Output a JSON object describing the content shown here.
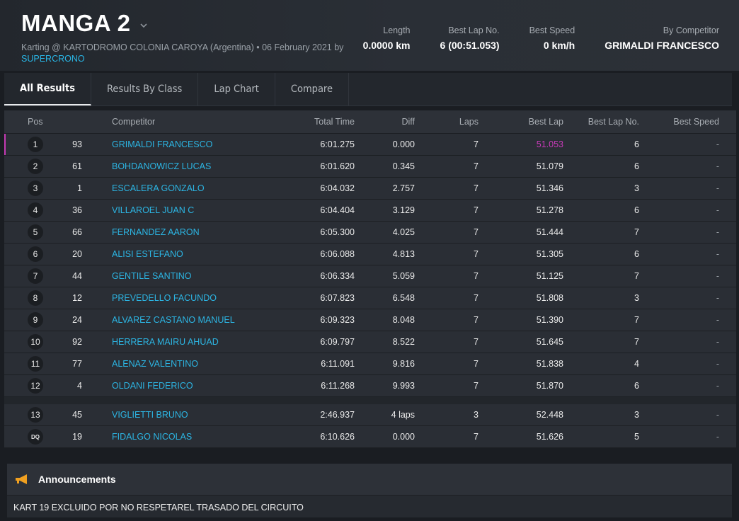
{
  "header": {
    "title": "MANGA 2",
    "subtitle_main": "Karting @ KARTODROMO COLONIA CAROYA (Argentina) • 06 February 2021 by",
    "subtitle_link": "SUPERCRONO",
    "stats": [
      {
        "label": "Length",
        "value": "0.0000 km"
      },
      {
        "label": "Best Lap No.",
        "value": "6 (00:51.053)"
      },
      {
        "label": "Best Speed",
        "value": "0 km/h"
      },
      {
        "label": "By Competitor",
        "value": "GRIMALDI FRANCESCO"
      }
    ]
  },
  "tabs": [
    {
      "label": "All Results",
      "active": true
    },
    {
      "label": "Results By Class",
      "active": false
    },
    {
      "label": "Lap Chart",
      "active": false
    },
    {
      "label": "Compare",
      "active": false
    }
  ],
  "table": {
    "columns": [
      "Pos",
      "Competitor",
      "Total Time",
      "Diff",
      "Laps",
      "Best Lap",
      "Best Lap No.",
      "Best Speed"
    ],
    "rows": [
      {
        "pos": "1",
        "no": "93",
        "name": "GRIMALDI FRANCESCO",
        "total": "6:01.275",
        "diff": "0.000",
        "laps": "7",
        "best": "51.053",
        "bln": "6",
        "speed": "-"
      },
      {
        "pos": "2",
        "no": "61",
        "name": "BOHDANOWICZ LUCAS",
        "total": "6:01.620",
        "diff": "0.345",
        "laps": "7",
        "best": "51.079",
        "bln": "6",
        "speed": "-"
      },
      {
        "pos": "3",
        "no": "1",
        "name": "ESCALERA GONZALO",
        "total": "6:04.032",
        "diff": "2.757",
        "laps": "7",
        "best": "51.346",
        "bln": "3",
        "speed": "-"
      },
      {
        "pos": "4",
        "no": "36",
        "name": "VILLAROEL JUAN C",
        "total": "6:04.404",
        "diff": "3.129",
        "laps": "7",
        "best": "51.278",
        "bln": "6",
        "speed": "-"
      },
      {
        "pos": "5",
        "no": "66",
        "name": "FERNANDEZ AARON",
        "total": "6:05.300",
        "diff": "4.025",
        "laps": "7",
        "best": "51.444",
        "bln": "7",
        "speed": "-"
      },
      {
        "pos": "6",
        "no": "20",
        "name": "ALISI ESTEFANO",
        "total": "6:06.088",
        "diff": "4.813",
        "laps": "7",
        "best": "51.305",
        "bln": "6",
        "speed": "-"
      },
      {
        "pos": "7",
        "no": "44",
        "name": "GENTILE SANTINO",
        "total": "6:06.334",
        "diff": "5.059",
        "laps": "7",
        "best": "51.125",
        "bln": "7",
        "speed": "-"
      },
      {
        "pos": "8",
        "no": "12",
        "name": "PREVEDELLO FACUNDO",
        "total": "6:07.823",
        "diff": "6.548",
        "laps": "7",
        "best": "51.808",
        "bln": "3",
        "speed": "-"
      },
      {
        "pos": "9",
        "no": "24",
        "name": "ALVAREZ CASTANO MANUEL",
        "total": "6:09.323",
        "diff": "8.048",
        "laps": "7",
        "best": "51.390",
        "bln": "7",
        "speed": "-"
      },
      {
        "pos": "10",
        "no": "92",
        "name": "HERRERA MAIRU AHUAD",
        "total": "6:09.797",
        "diff": "8.522",
        "laps": "7",
        "best": "51.645",
        "bln": "7",
        "speed": "-"
      },
      {
        "pos": "11",
        "no": "77",
        "name": "ALENAZ VALENTINO",
        "total": "6:11.091",
        "diff": "9.816",
        "laps": "7",
        "best": "51.838",
        "bln": "4",
        "speed": "-"
      },
      {
        "pos": "12",
        "no": "4",
        "name": "OLDANI FEDERICO",
        "total": "6:11.268",
        "diff": "9.993",
        "laps": "7",
        "best": "51.870",
        "bln": "6",
        "speed": "-"
      }
    ],
    "extra_rows": [
      {
        "pos": "13",
        "no": "45",
        "name": "VIGLIETTI BRUNO",
        "total": "2:46.937",
        "diff": "4 laps",
        "laps": "3",
        "best": "52.448",
        "bln": "3",
        "speed": "-"
      },
      {
        "pos": "DQ",
        "no": "19",
        "name": "FIDALGO NICOLAS",
        "total": "6:10.626",
        "diff": "0.000",
        "laps": "7",
        "best": "51.626",
        "bln": "5",
        "speed": "-"
      }
    ]
  },
  "announcements": {
    "title": "Announcements",
    "icon": "megaphone-icon",
    "text": "KART 19 EXCLUIDO POR NO RESPETAREL TRASADO DEL CIRCUITO"
  },
  "colors": {
    "link": "#2cb5e3",
    "fastest": "#c73ab8",
    "accent_icon": "#f0a020"
  }
}
